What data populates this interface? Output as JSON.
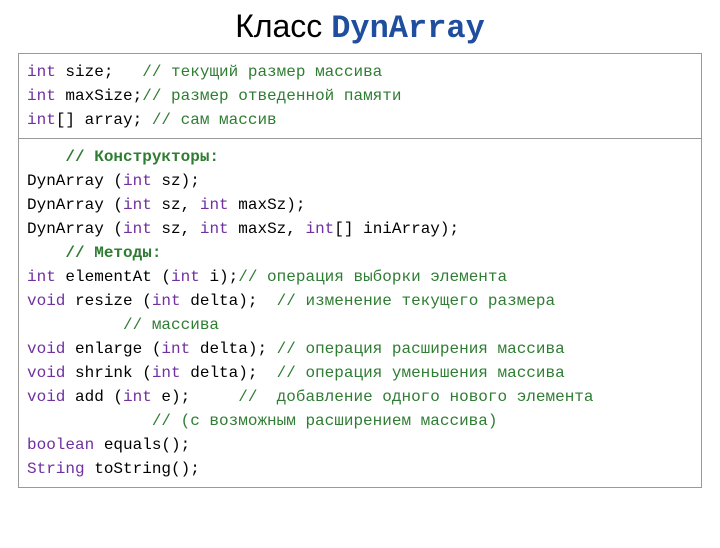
{
  "title": {
    "label": "Класс ",
    "typename": "DynArray",
    "fontsize": 32,
    "typename_color": "#1f4e9e",
    "label_color": "#000000"
  },
  "colors": {
    "keyword": "#7030a0",
    "comment": "#2e7d32",
    "text": "#000000",
    "border": "#999999",
    "background": "#ffffff"
  },
  "typography": {
    "code_font": "Courier New",
    "code_fontsize": 16,
    "title_font": "Arial"
  },
  "fields": [
    {
      "kw": "int",
      "name": " size;   ",
      "comment": "// текущий размер массива"
    },
    {
      "kw": "int",
      "name": " maxSize;",
      "comment": "// размер отведенной памяти"
    },
    {
      "kw": "int",
      "arr": "[]",
      "name": " array; ",
      "comment": "// сам массив"
    }
  ],
  "ctor_header": "    // Конструкторы:",
  "constructors": [
    {
      "pre": "DynArray (",
      "p1kw": "int",
      "p1": " sz);",
      "rest": ""
    },
    {
      "pre": "DynArray (",
      "p1kw": "int",
      "p1": " sz, ",
      "p2kw": "int",
      "p2": " maxSz);",
      "rest": ""
    },
    {
      "pre": "DynArray (",
      "p1kw": "int",
      "p1": " sz, ",
      "p2kw": "int",
      "p2": " maxSz, ",
      "p3kw": "int",
      "p3arr": "[]",
      "p3": " iniArray);"
    }
  ],
  "methods_header": "    // Методы:",
  "methods": [
    {
      "ret": "int",
      "sig1": " elementAt (",
      "pkw": "int",
      "sig2": " i);",
      "comment": "// операция выборки элемента"
    },
    {
      "ret": "void",
      "sig1": " resize (",
      "pkw": "int",
      "sig2": " delta);  ",
      "comment": "// изменение текущего размера"
    },
    {
      "cont_comment": "          // массива"
    },
    {
      "ret": "void",
      "sig1": " enlarge (",
      "pkw": "int",
      "sig2": " delta); ",
      "comment": "// операция расширения массива"
    },
    {
      "ret": "void",
      "sig1": " shrink (",
      "pkw": "int",
      "sig2": " delta);  ",
      "comment": "// операция уменьшения массива"
    },
    {
      "ret": "void",
      "sig1": " add (",
      "pkw": "int",
      "sig2": " e);     ",
      "comment": "//  добавление одного нового элемента"
    },
    {
      "cont_comment": "             // (с возможным расширением массива)"
    },
    {
      "ret": "boolean",
      "sig1": " equals();",
      "pkw": "",
      "sig2": "",
      "comment": ""
    },
    {
      "ret": "String",
      "sig1": " toString();",
      "pkw": "",
      "sig2": "",
      "comment": ""
    }
  ]
}
